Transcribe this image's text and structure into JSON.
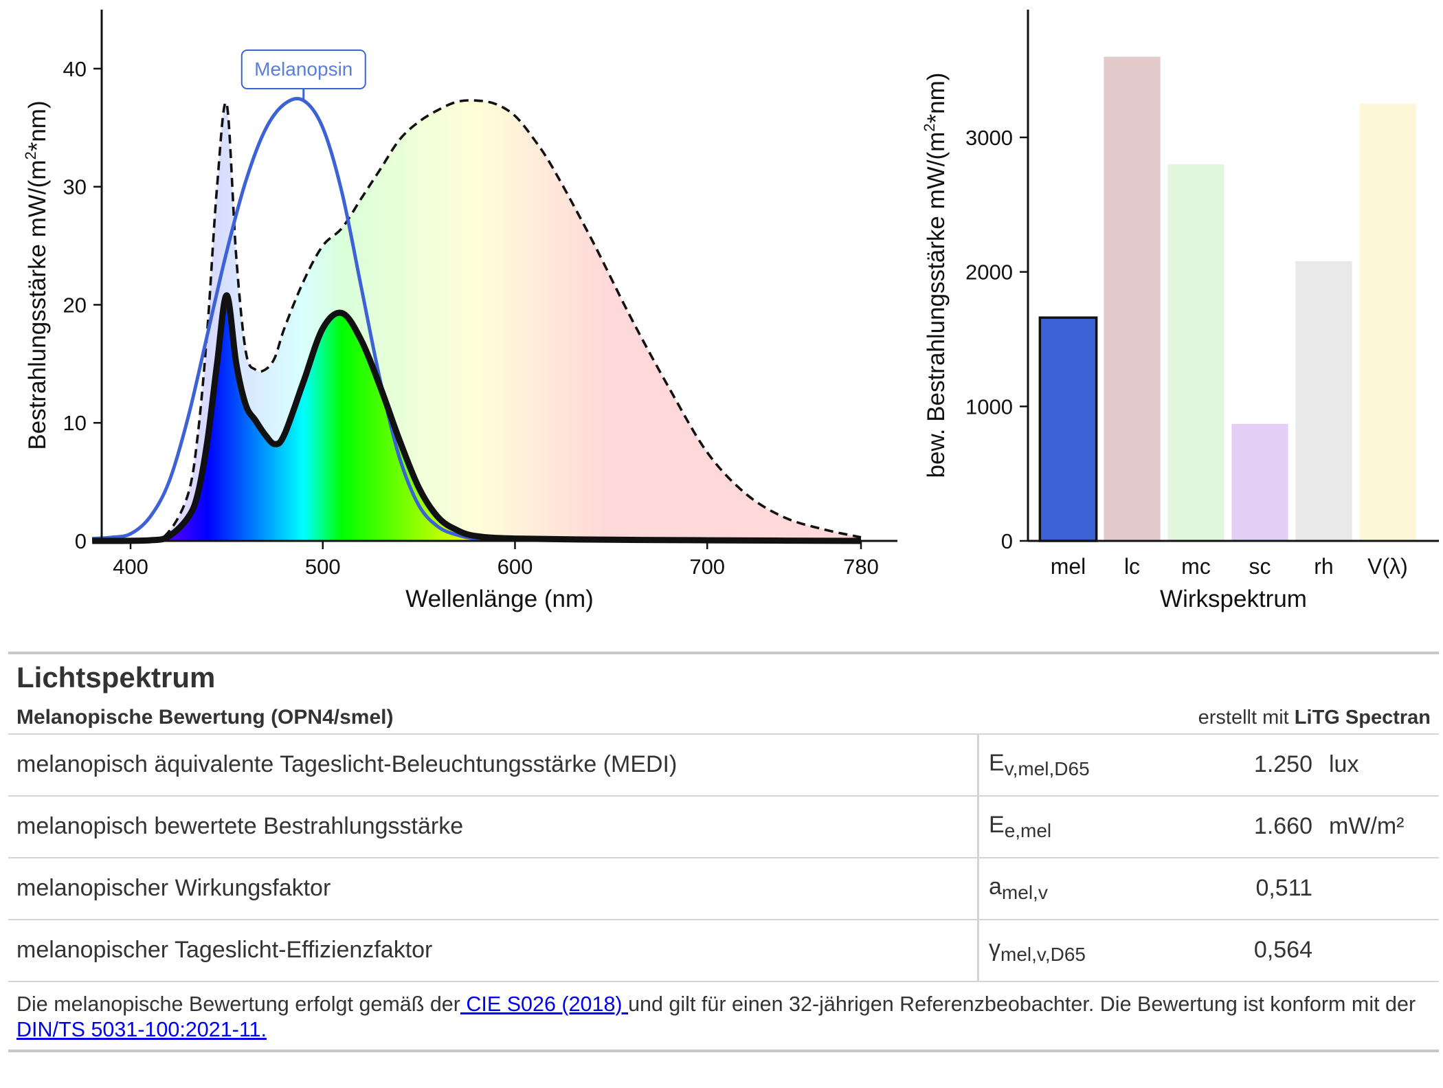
{
  "chart_data": [
    {
      "type": "line",
      "title": "",
      "xlabel": "Wellenlänge (nm)",
      "ylabel_main": "Bestrahlungsstärke  mW/(m",
      "ylabel_sup": "2",
      "ylabel_end": "*nm)",
      "xlim": [
        380,
        800
      ],
      "ylim": [
        0,
        45
      ],
      "xticks": [
        400,
        500,
        600,
        700,
        780
      ],
      "yticks": [
        0,
        10,
        20,
        30,
        40
      ],
      "annotation": "Melanopsin",
      "annotation_x": 490,
      "series": [
        {
          "name": "Melanopsin",
          "color": "#3d62d6",
          "x": [
            380,
            390,
            400,
            410,
            420,
            430,
            440,
            450,
            460,
            470,
            480,
            490,
            500,
            510,
            520,
            530,
            540,
            550,
            560,
            570,
            580,
            600,
            650,
            700,
            780
          ],
          "y": [
            0.2,
            0.3,
            0.6,
            2.0,
            5.0,
            10.5,
            17.5,
            24.5,
            30.5,
            34.8,
            37.0,
            37.3,
            35.0,
            29.5,
            21.5,
            13.5,
            7.0,
            3.0,
            1.2,
            0.5,
            0.2,
            0.08,
            0.02,
            0.01,
            0.0
          ]
        },
        {
          "x": [
            380,
            410,
            420,
            430,
            435,
            440,
            445,
            450,
            455,
            460,
            465,
            470,
            475,
            480,
            490,
            500,
            510,
            520,
            530,
            540,
            550,
            560,
            570,
            580,
            590,
            600,
            610,
            620,
            640,
            660,
            680,
            700,
            720,
            740,
            760,
            780
          ],
          "y": [
            0,
            0.1,
            0.8,
            4.0,
            9.0,
            18.0,
            30.0,
            37.0,
            24.0,
            16.0,
            14.5,
            14.5,
            15.5,
            18.0,
            22.0,
            25.0,
            26.5,
            29.0,
            31.5,
            34.0,
            35.5,
            36.5,
            37.2,
            37.3,
            37.0,
            36.0,
            34.0,
            31.5,
            25.5,
            19.0,
            13.0,
            7.5,
            4.0,
            2.0,
            1.0,
            0.3
          ]
        },
        {
          "x": [
            380,
            410,
            420,
            430,
            435,
            440,
            445,
            450,
            455,
            460,
            465,
            470,
            475,
            480,
            490,
            500,
            510,
            520,
            530,
            540,
            550,
            560,
            570,
            580,
            600,
            650,
            700,
            780
          ],
          "y": [
            0,
            0.05,
            0.4,
            2.0,
            4.0,
            8.5,
            15.0,
            20.8,
            15.0,
            11.5,
            10.2,
            9.0,
            8.2,
            9.0,
            13.5,
            18.0,
            19.3,
            17.0,
            13.0,
            8.5,
            4.5,
            2.0,
            0.9,
            0.4,
            0.2,
            0.1,
            0.05,
            0.0
          ]
        }
      ]
    },
    {
      "type": "bar",
      "title": "",
      "xlabel": "Wirkspektrum",
      "ylabel_main": "bew. Bestrahlungsstärke  mW/(m",
      "ylabel_sup": "2",
      "ylabel_end": "*nm)",
      "ylim": [
        0,
        3950
      ],
      "yticks": [
        0,
        1000,
        2000,
        3000
      ],
      "categories": [
        "mel",
        "lc",
        "mc",
        "sc",
        "rh",
        "V(λ)"
      ],
      "values": [
        1660,
        3600,
        2800,
        870,
        2080,
        3250
      ],
      "colors": [
        "#3d62d6",
        "#e3cbcb",
        "#e2f5dd",
        "#e3cff5",
        "#e9e9e9",
        "#fdf6d7"
      ]
    }
  ],
  "report": {
    "title": "Lichtspektrum",
    "subtitle": "Melanopische Bewertung (OPN4/smel)",
    "credit_prefix": "erstellt mit ",
    "credit_brand": "LiTG Spectran",
    "rows": [
      {
        "label": "melanopisch äquivalente Tageslicht-Beleuchtungsstärke (MEDI)",
        "sym": "E",
        "sub": "v,mel,D65",
        "value": "1.250",
        "unit": "lux"
      },
      {
        "label": "melanopisch bewertete Bestrahlungsstärke",
        "sym": "E",
        "sub": "e,mel",
        "value": "1.660",
        "unit": "mW/m²"
      },
      {
        "label": "melanopischer Wirkungsfaktor",
        "sym": "a",
        "sub": "mel,v",
        "value": "0,511",
        "unit": ""
      },
      {
        "label": "melanopischer Tageslicht-Effizienzfaktor",
        "sym": "γ",
        "sub": "mel,v,D65",
        "value": "0,564",
        "unit": ""
      }
    ],
    "footnote": {
      "t1": "Die melanopische Bewertung erfolgt gemäß der",
      "link1": " CIE S026 (2018) ",
      "t2": "und gilt für einen 32-jährigen Referenzbeobachter. Die Bewertung ist konform mit der",
      "link2": " DIN/TS 5031-100:2021-11."
    }
  }
}
